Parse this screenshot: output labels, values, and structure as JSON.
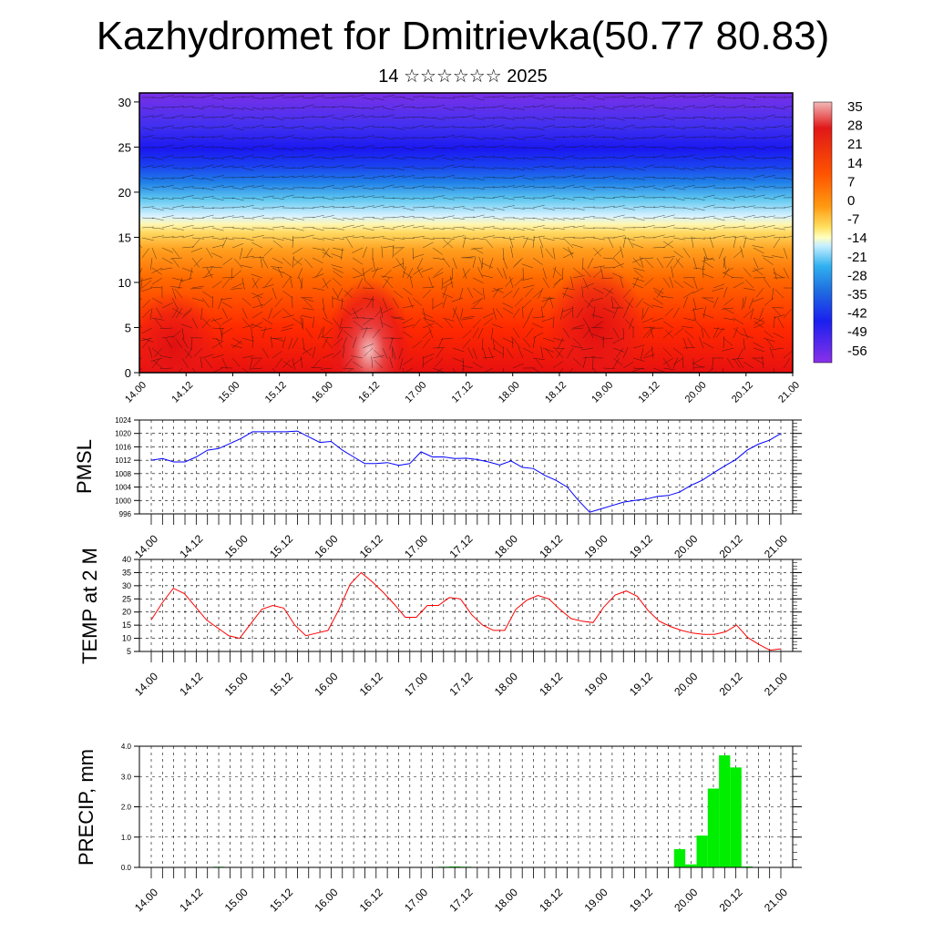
{
  "title": "Kazhydromet for Dmitrievka(50.77 80.83)",
  "subtitle": "14 ☆☆☆☆☆☆ 2025",
  "time_labels": [
    "14.00",
    "14.12",
    "15.00",
    "15.12",
    "16.00",
    "16.12",
    "17.00",
    "17.12",
    "18.00",
    "18.12",
    "19.00",
    "19.12",
    "20.00",
    "20.12",
    "21.00"
  ],
  "colors": {
    "pmsl_line": "#0000ff",
    "temp_line": "#ff0000",
    "precip_bar": "#00ee00"
  },
  "chart_data": [
    {
      "type": "heatmap",
      "name": "cross-section",
      "ylim": [
        0,
        31
      ],
      "yticks": [
        0,
        5,
        10,
        15,
        20,
        25,
        30
      ],
      "colorbar_labels": [
        "35",
        "28",
        "21",
        "14",
        "7",
        "0",
        "-7",
        "-14",
        "-21",
        "-28",
        "-35",
        "-42",
        "-49",
        "-56"
      ],
      "x_labels": [
        "14.00",
        "14.12",
        "15.00",
        "15.12",
        "16.00",
        "16.12",
        "17.00",
        "17.12",
        "18.00",
        "18.12",
        "19.00",
        "19.12",
        "20.00",
        "20.12",
        "21.00"
      ]
    },
    {
      "type": "line",
      "ylabel": "PMSL",
      "ylim": [
        996,
        1024
      ],
      "yticks": [
        996,
        1000,
        1004,
        1008,
        1012,
        1016,
        1020,
        1024
      ],
      "x_labels": [
        "14.00",
        "14.12",
        "15.00",
        "15.12",
        "16.00",
        "16.12",
        "17.00",
        "17.12",
        "18.00",
        "18.12",
        "19.00",
        "19.12",
        "20.00",
        "20.12",
        "21.00"
      ],
      "values": [
        1012,
        1012.5,
        1011.5,
        1011.5,
        1013,
        1015,
        1015.5,
        1017,
        1018.5,
        1020.5,
        1020.5,
        1020.5,
        1020.5,
        1020.7,
        1019,
        1017.3,
        1017.6,
        1015,
        1013,
        1011,
        1011,
        1011.3,
        1010.5,
        1011,
        1014.5,
        1013,
        1013,
        1012.5,
        1012.6,
        1012.2,
        1011.5,
        1010.6,
        1011.8,
        1009.9,
        1009.5,
        1007.5,
        1006,
        1004,
        1000,
        996.5,
        997.5,
        998.5,
        999.5,
        1000,
        1000.4,
        1001.2,
        1001.5,
        1002.5,
        1004.5,
        1006,
        1008.2,
        1010.3,
        1012.2,
        1015,
        1016.8,
        1018,
        1020
      ]
    },
    {
      "type": "line",
      "ylabel": "TEMP at 2 M",
      "ylim": [
        5,
        40
      ],
      "yticks": [
        5,
        10,
        15,
        20,
        25,
        30,
        35,
        40
      ],
      "x_labels": [
        "14.00",
        "14.12",
        "15.00",
        "15.12",
        "16.00",
        "16.12",
        "17.00",
        "17.12",
        "18.00",
        "18.12",
        "19.00",
        "19.12",
        "20.00",
        "20.12",
        "21.00"
      ],
      "values": [
        17,
        23.5,
        29,
        27,
        22,
        17,
        14,
        11,
        10,
        15.5,
        21,
        22.5,
        21.5,
        15,
        11,
        12,
        13,
        21,
        30.5,
        35,
        31.5,
        27.5,
        23,
        18,
        18,
        22.5,
        22.5,
        25.5,
        25,
        19,
        15,
        13,
        13,
        21,
        24.5,
        26.3,
        25,
        21,
        17.5,
        16.5,
        16,
        22,
        26.5,
        28,
        26,
        20.5,
        16.5,
        14.5,
        13,
        12,
        11.5,
        11.5,
        12.5,
        15,
        10.3,
        7.7,
        5.5,
        6
      ]
    },
    {
      "type": "bar",
      "ylabel": "PRECIP, mm",
      "ylim": [
        0,
        4
      ],
      "yticks": [
        "0.0",
        "1.0",
        "2.0",
        "3.0",
        "4.0"
      ],
      "x_labels": [
        "14.00",
        "14.12",
        "15.00",
        "15.12",
        "16.00",
        "16.12",
        "17.00",
        "17.12",
        "18.00",
        "18.12",
        "19.00",
        "19.12",
        "20.00",
        "20.12",
        "21.00"
      ],
      "values": [
        0,
        0,
        0,
        0,
        0,
        0,
        0.02,
        0,
        0.01,
        0,
        0,
        0,
        0,
        0,
        0,
        0,
        0,
        0,
        0,
        0,
        0,
        0,
        0,
        0,
        0,
        0,
        0.02,
        0.03,
        0.02,
        0,
        0,
        0,
        0,
        0,
        0,
        0,
        0,
        0,
        0,
        0,
        0,
        0,
        0,
        0,
        0,
        0,
        0,
        0.6,
        0.1,
        1.05,
        2.6,
        3.7,
        3.3,
        0.03,
        0,
        0,
        0
      ]
    }
  ]
}
